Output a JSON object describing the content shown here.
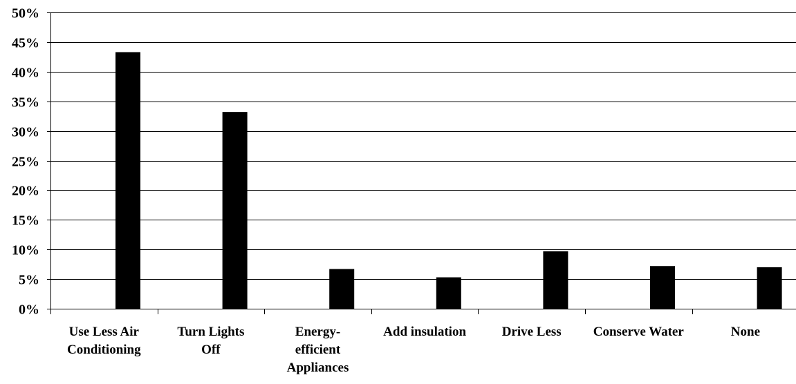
{
  "chart_data": {
    "type": "bar",
    "categories": [
      "Use Less Air Conditioning",
      "Turn Lights Off",
      "Energy-efficient Appliances",
      "Add insulation",
      "Drive Less",
      "Conserve Water",
      "None"
    ],
    "category_label_lines": [
      [
        "Use Less Air",
        "Conditioning"
      ],
      [
        "Turn Lights",
        "Off"
      ],
      [
        "Energy-",
        "efficient",
        "Appliances"
      ],
      [
        "Add insulation"
      ],
      [
        "Drive Less"
      ],
      [
        "Conserve Water"
      ],
      [
        "None"
      ]
    ],
    "values": [
      43.3,
      33.2,
      6.7,
      5.3,
      9.7,
      7.2,
      7.0
    ],
    "ylim": [
      0,
      50
    ],
    "ytick_step": 5,
    "ytick_labels": [
      "0%",
      "5%",
      "10%",
      "15%",
      "20%",
      "25%",
      "30%",
      "35%",
      "40%",
      "45%",
      "50%"
    ],
    "title": "",
    "xlabel": "",
    "ylabel": "",
    "grid": "horizontal",
    "legend": "none",
    "bar_color": "#000000",
    "gridline_color": "#000000"
  }
}
